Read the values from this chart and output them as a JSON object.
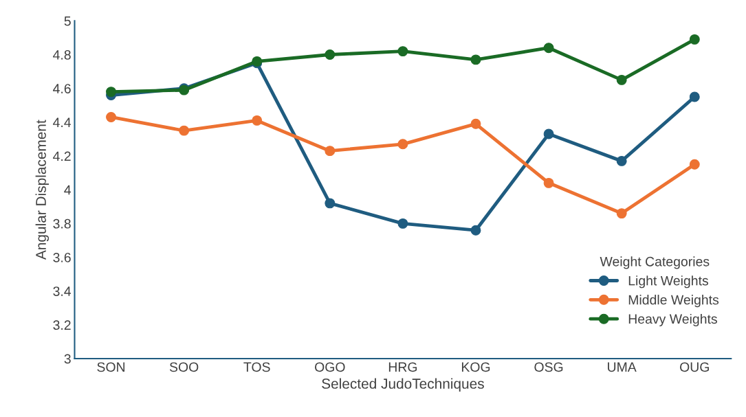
{
  "chart_data": {
    "type": "line",
    "xlabel": "Selected JudoTechniques",
    "ylabel": "Angular Displacement",
    "legend_title": "Weight Categories",
    "categories": [
      "SON",
      "SOO",
      "TOS",
      "OGO",
      "HRG",
      "KOG",
      "OSG",
      "UMA",
      "OUG"
    ],
    "series": [
      {
        "name": "Light Weights",
        "color": "#1f5c80",
        "values": [
          4.56,
          4.6,
          4.75,
          3.92,
          3.8,
          3.76,
          4.33,
          4.17,
          4.55
        ]
      },
      {
        "name": "Middle Weights",
        "color": "#ed7232",
        "values": [
          4.43,
          4.35,
          4.41,
          4.23,
          4.27,
          4.39,
          4.04,
          3.86,
          4.15
        ]
      },
      {
        "name": "Heavy Weights",
        "color": "#1a6b25",
        "values": [
          4.58,
          4.59,
          4.76,
          4.8,
          4.82,
          4.77,
          4.84,
          4.65,
          4.89
        ]
      }
    ],
    "ylim": [
      3,
      5
    ],
    "yticks": [
      3,
      3.2,
      3.4,
      3.6,
      3.8,
      4,
      4.2,
      4.4,
      4.6,
      4.8,
      5
    ],
    "grid": false,
    "legend": "bottom right",
    "marker": "circle",
    "line_style": "solid"
  }
}
